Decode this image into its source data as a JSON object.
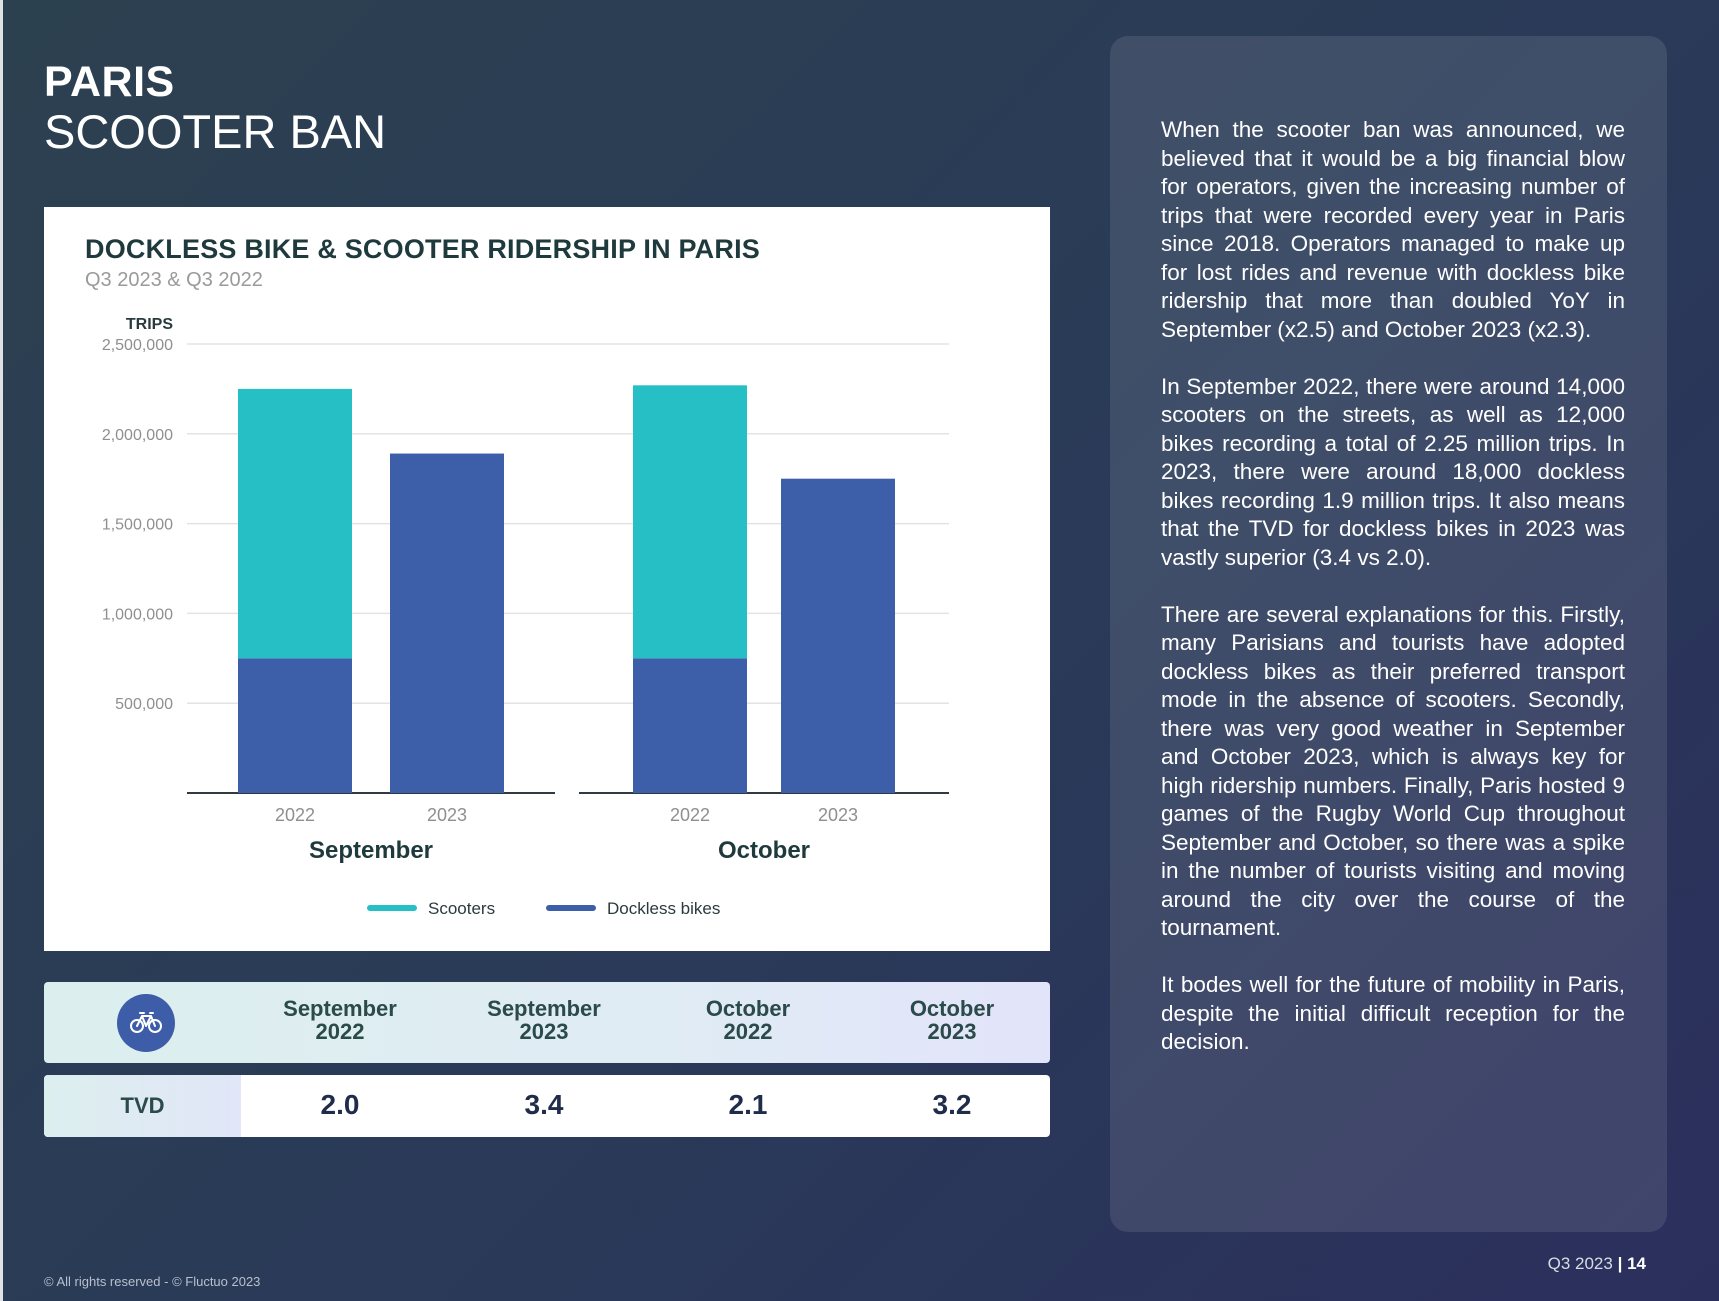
{
  "header": {
    "title_line1": "PARIS",
    "title_line2": "SCOOTER BAN"
  },
  "chart_card": {
    "title": "DOCKLESS BIKE & SCOOTER RIDERSHIP IN PARIS",
    "subtitle": "Q3 2023 & Q3 2022"
  },
  "chart_data": {
    "type": "bar",
    "stacked": true,
    "title": "DOCKLESS BIKE & SCOOTER RIDERSHIP IN PARIS",
    "subtitle": "Q3 2023 & Q3 2022",
    "ylabel": "TRIPS",
    "ylim": [
      0,
      2500000
    ],
    "yticks": [
      500000,
      1000000,
      1500000,
      2000000,
      2500000
    ],
    "ytick_labels": [
      "500,000",
      "1,000,000",
      "1,500,000",
      "2,000,000",
      "2,500,000"
    ],
    "groups": [
      "September",
      "October"
    ],
    "categories": [
      "2022",
      "2023",
      "2022",
      "2023"
    ],
    "category_groups": [
      0,
      0,
      1,
      1
    ],
    "series": [
      {
        "name": "Dockless bikes",
        "color": "#3d5ea8",
        "values": [
          750000,
          1890000,
          750000,
          1750000
        ]
      },
      {
        "name": "Scooters",
        "color": "#27bfc6",
        "values": [
          1500000,
          0,
          1520000,
          0
        ]
      }
    ],
    "legend": {
      "position": "bottom",
      "order": [
        "Scooters",
        "Dockless bikes"
      ]
    },
    "grid": true
  },
  "table": {
    "icon": "bike-icon",
    "columns": [
      {
        "month": "September",
        "year": "2022"
      },
      {
        "month": "September",
        "year": "2023"
      },
      {
        "month": "October",
        "year": "2022"
      },
      {
        "month": "October",
        "year": "2023"
      }
    ],
    "row_label": "TVD",
    "values": [
      "2.0",
      "3.4",
      "2.1",
      "3.2"
    ]
  },
  "text_panel": {
    "paragraphs": [
      "When the scooter ban was announced, we believed that it would be a big financial blow for operators, given the increasing number of trips that were recorded every year in Paris since 2018. Operators managed to make up for lost rides and revenue with dockless bike ridership that more than doubled YoY in September (x2.5) and October 2023 (x2.3).",
      "In September 2022, there were around 14,000 scooters on the streets, as well as 12,000 bikes recording a total of 2.25 million trips. In 2023, there were around 18,000 dockless bikes recording 1.9 million trips. It also means that the TVD for dockless bikes in 2023 was vastly superior (3.4 vs 2.0).",
      "There are several explanations for this. Firstly, many Parisians and tourists have adopted dockless bikes as their preferred transport mode in the absence of scooters. Secondly, there was very good weather in September and October 2023, which is always key for high ridership numbers. Finally, Paris hosted 9 games of the Rugby World Cup throughout September and October, so there was a spike in the number of tourists visiting and moving around the city over the course of the tournament.",
      "It bodes well for the future of mobility in Paris, despite the initial difficult reception for the decision."
    ]
  },
  "footer": {
    "copyright": "© All rights reserved - © Fluctuo 2023",
    "period": "Q3 2023",
    "page_number": "14"
  }
}
